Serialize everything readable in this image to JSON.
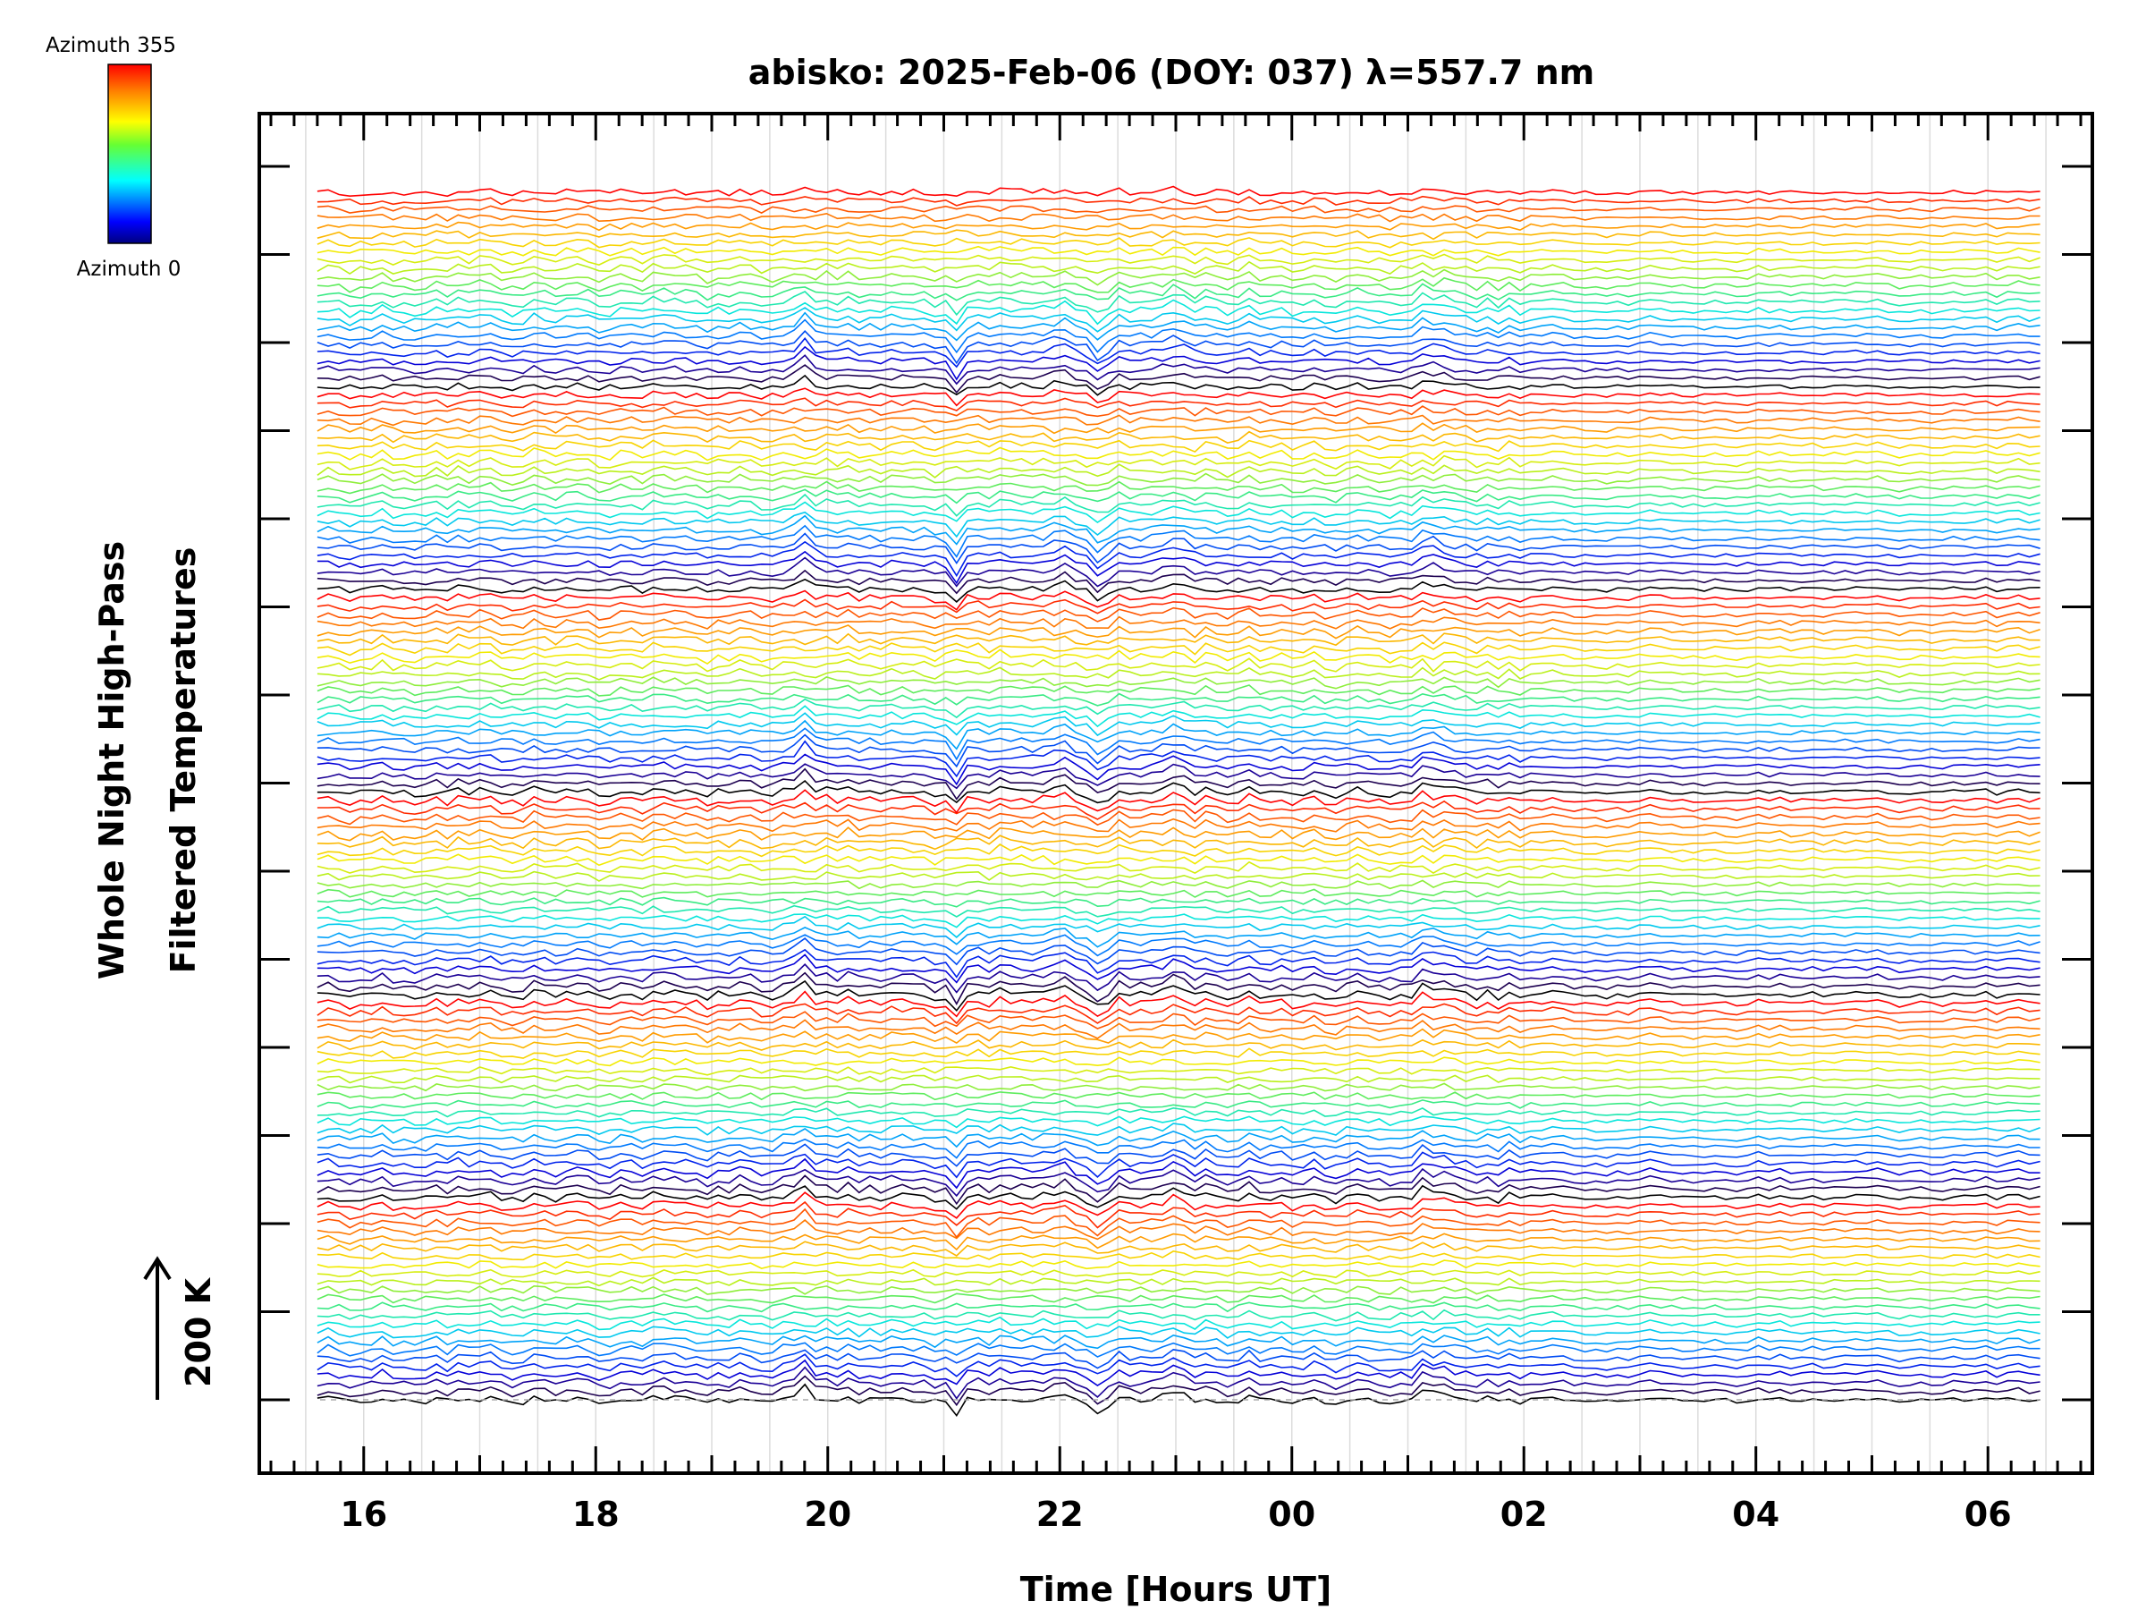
{
  "chart_data": {
    "type": "line",
    "title": "abisko: 2025-Feb-06 (DOY: 037) λ=557.7 nm",
    "xlabel": "Time [Hours UT]",
    "ylabel_line1": "Whole Night High-Pass",
    "ylabel_line2": "Filtered Temperatures",
    "x_ticks": [
      "16",
      "18",
      "20",
      "22",
      "00",
      "02",
      "04",
      "06"
    ],
    "x_tick_hours": [
      16,
      18,
      20,
      22,
      24,
      26,
      28,
      30
    ],
    "xlim": [
      15.1,
      30.9
    ],
    "data_range_hours": [
      15.6,
      30.45
    ],
    "y_scale_label": "200 K",
    "colorbar": {
      "top_label": "Azimuth 355",
      "bottom_label": "Azimuth 0",
      "colormap": "rainbow"
    },
    "series_count": 144,
    "azimuth_step_deg": 5,
    "groups": 6,
    "grid": true
  }
}
